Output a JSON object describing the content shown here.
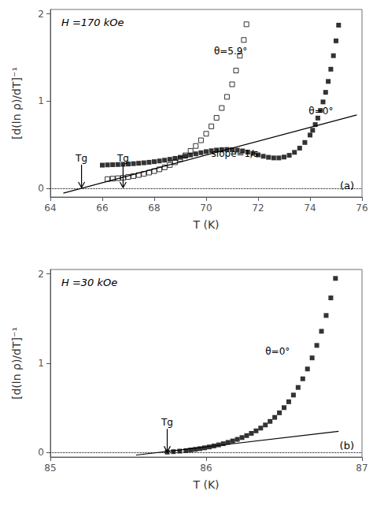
{
  "chart_data": [
    {
      "type": "scatter",
      "title": "H =170 kOe",
      "xlabel": "T (K)",
      "ylabel": "[d(ln ρ)/dT]⁻¹",
      "xlim": [
        64,
        76
      ],
      "ylim": [
        -0.1,
        2.05
      ],
      "xticks": [
        64,
        66,
        68,
        70,
        72,
        74,
        76
      ],
      "yticks": [
        0,
        1,
        2
      ],
      "grid": false,
      "series": [
        {
          "type": "hline",
          "values": [
            0
          ],
          "color": "#000000",
          "line_style": "dotted"
        },
        {
          "type": "line",
          "color": "#000000",
          "x": [
            64.5,
            75.8
          ],
          "values": [
            -0.056,
            0.84
          ]
        },
        {
          "type": "scatter",
          "marker": "open_square",
          "color": "#000000",
          "x": [
            66.2,
            66.4,
            66.6,
            66.8,
            67.0,
            67.2,
            67.4,
            67.6,
            67.8,
            68.0,
            68.2,
            68.4,
            68.6,
            68.8,
            69.0,
            69.2,
            69.4,
            69.6,
            69.8,
            70.0,
            70.2,
            70.4,
            70.6,
            70.8,
            71.0,
            71.15,
            71.3,
            71.45,
            71.55
          ],
          "values": [
            0.105,
            0.11,
            0.115,
            0.12,
            0.13,
            0.14,
            0.152,
            0.165,
            0.18,
            0.197,
            0.217,
            0.24,
            0.267,
            0.298,
            0.335,
            0.378,
            0.428,
            0.485,
            0.55,
            0.625,
            0.71,
            0.808,
            0.92,
            1.048,
            1.192,
            1.35,
            1.52,
            1.7,
            1.88
          ]
        },
        {
          "type": "scatter",
          "marker": "square",
          "color": "#000000",
          "x": [
            66.0,
            66.2,
            66.4,
            66.6,
            66.8,
            67.0,
            67.2,
            67.4,
            67.6,
            67.8,
            68.0,
            68.2,
            68.4,
            68.6,
            68.8,
            69.0,
            69.2,
            69.4,
            69.6,
            69.8,
            70.0,
            70.2,
            70.4,
            70.6,
            70.8,
            71.0,
            71.2,
            71.4,
            71.6,
            71.8,
            72.0,
            72.2,
            72.4,
            72.6,
            72.8,
            73.0,
            73.2,
            73.4,
            73.6,
            73.8,
            74.0,
            74.1,
            74.2,
            74.3,
            74.4,
            74.5,
            74.6,
            74.7,
            74.8,
            74.9,
            75.0,
            75.1
          ],
          "values": [
            0.265,
            0.268,
            0.27,
            0.272,
            0.275,
            0.278,
            0.282,
            0.287,
            0.292,
            0.298,
            0.305,
            0.313,
            0.322,
            0.332,
            0.343,
            0.355,
            0.368,
            0.382,
            0.395,
            0.408,
            0.42,
            0.43,
            0.438,
            0.443,
            0.445,
            0.443,
            0.437,
            0.428,
            0.415,
            0.4,
            0.383,
            0.367,
            0.355,
            0.348,
            0.348,
            0.358,
            0.378,
            0.412,
            0.46,
            0.525,
            0.61,
            0.665,
            0.73,
            0.805,
            0.892,
            0.99,
            1.1,
            1.225,
            1.365,
            1.52,
            1.69,
            1.87
          ]
        }
      ],
      "annotations": [
        {
          "text": "θ=5.9°",
          "x": 70.3,
          "y": 1.52
        },
        {
          "text": "θ=0°",
          "x": 73.95,
          "y": 0.83
        },
        {
          "text": "slope=1/s",
          "x": 70.2,
          "y": 0.34
        },
        {
          "text": "(a)"
        },
        {
          "text": "Tg",
          "x": 65.2,
          "y": 0,
          "marker": "arrow"
        },
        {
          "text": "Tg",
          "x": 66.8,
          "y": 0,
          "marker": "arrow"
        }
      ]
    },
    {
      "type": "scatter",
      "title": "H =30 kOe",
      "xlabel": "T (K)",
      "ylabel": "[d(ln ρ)/dT]⁻¹",
      "xlim": [
        85,
        87
      ],
      "ylim": [
        -0.05,
        2.05
      ],
      "xticks": [
        85,
        86,
        87
      ],
      "yticks": [
        0,
        1,
        2
      ],
      "grid": false,
      "series": [
        {
          "type": "hline",
          "values": [
            0
          ],
          "color": "#000000",
          "line_style": "dotted"
        },
        {
          "type": "line",
          "color": "#000000",
          "x": [
            85.55,
            86.85
          ],
          "values": [
            -0.028,
            0.238
          ]
        },
        {
          "type": "scatter",
          "marker": "square",
          "color": "#000000",
          "x": [
            85.75,
            85.79,
            85.83,
            85.87,
            85.9,
            85.93,
            85.96,
            85.99,
            86.02,
            86.05,
            86.08,
            86.11,
            86.14,
            86.17,
            86.2,
            86.23,
            86.26,
            86.29,
            86.32,
            86.35,
            86.38,
            86.41,
            86.44,
            86.47,
            86.5,
            86.53,
            86.56,
            86.59,
            86.62,
            86.65,
            86.68,
            86.71,
            86.74,
            86.77,
            86.8,
            86.83
          ],
          "values": [
            0.005,
            0.01,
            0.016,
            0.022,
            0.029,
            0.036,
            0.044,
            0.053,
            0.063,
            0.074,
            0.086,
            0.099,
            0.114,
            0.13,
            0.148,
            0.168,
            0.19,
            0.215,
            0.243,
            0.274,
            0.309,
            0.349,
            0.394,
            0.445,
            0.503,
            0.569,
            0.644,
            0.729,
            0.826,
            0.936,
            1.06,
            1.2,
            1.358,
            1.535,
            1.732,
            1.95
          ]
        }
      ],
      "annotations": [
        {
          "text": "θ=0°",
          "x": 86.38,
          "y": 1.08
        },
        {
          "text": "(b)"
        },
        {
          "text": "Tg",
          "x": 85.75,
          "y": 0,
          "marker": "arrow"
        }
      ]
    }
  ]
}
